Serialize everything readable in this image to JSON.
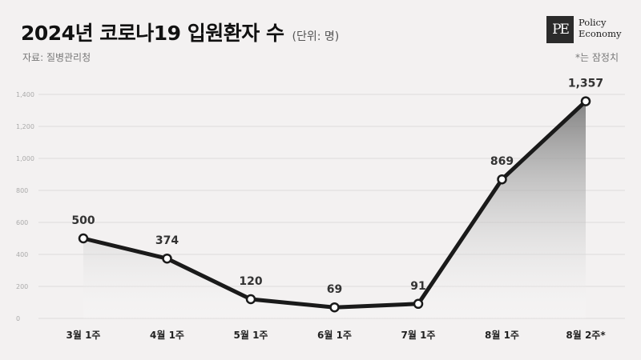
{
  "header": {
    "title": "2024년 코로나19 입원환자 수",
    "unit": "(단위: 명)",
    "source": "자료: 질병관리청",
    "note": "*는 잠정치"
  },
  "logo": {
    "mark": "PE",
    "line1": "Policy",
    "line2": "Economy"
  },
  "chart_data": {
    "type": "area",
    "categories": [
      "3월 1주",
      "4월 1주",
      "5월 1주",
      "6월 1주",
      "7월 1주",
      "8월 1주",
      "8월 2주*"
    ],
    "values": [
      500,
      374,
      120,
      69,
      91,
      869,
      1357
    ],
    "data_labels": [
      "500",
      "374",
      "120",
      "69",
      "91",
      "869",
      "1,357"
    ],
    "yticks": [
      "0",
      "200",
      "400",
      "600",
      "800",
      "1,000",
      "1,200",
      "1,400"
    ],
    "ytick_values": [
      0,
      200,
      400,
      600,
      800,
      1000,
      1200,
      1400
    ],
    "ylim": [
      0,
      1400
    ],
    "grid": true,
    "line_color": "#1a1a1a",
    "fill_color": "#8a8a8a"
  }
}
